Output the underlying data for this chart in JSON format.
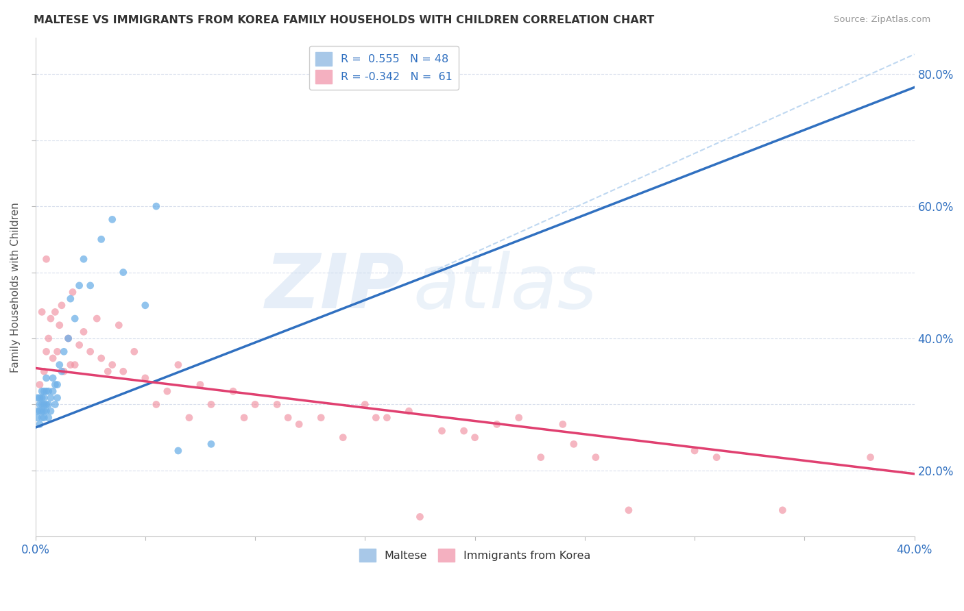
{
  "title": "MALTESE VS IMMIGRANTS FROM KOREA FAMILY HOUSEHOLDS WITH CHILDREN CORRELATION CHART",
  "source": "Source: ZipAtlas.com",
  "ylabel": "Family Households with Children",
  "maltese_color": "#6eb0e8",
  "korea_color": "#f090a0",
  "maltese_line_color": "#3070c0",
  "korea_line_color": "#e04070",
  "dashed_line_color": "#b8d4f0",
  "background_color": "#ffffff",
  "watermark_text": "ZIP",
  "watermark_text2": "atlas",
  "xlim": [
    0.0,
    0.4
  ],
  "ylim": [
    0.1,
    0.855
  ],
  "ytick_vals": [
    0.2,
    0.3,
    0.4,
    0.5,
    0.6,
    0.7,
    0.8
  ],
  "ytick_labels_right": [
    "20.0%",
    "",
    "40.0%",
    "",
    "60.0%",
    "",
    "80.0%"
  ],
  "maltese_line_x0": 0.0,
  "maltese_line_y0": 0.265,
  "maltese_line_x1": 0.4,
  "maltese_line_y1": 0.78,
  "korea_line_x0": 0.0,
  "korea_line_y0": 0.355,
  "korea_line_x1": 0.4,
  "korea_line_y1": 0.195,
  "dashed_line_x0": 0.18,
  "dashed_line_y0": 0.5,
  "dashed_line_x1": 0.4,
  "dashed_line_y1": 0.83,
  "maltese_x": [
    0.001,
    0.001,
    0.001,
    0.002,
    0.002,
    0.002,
    0.002,
    0.003,
    0.003,
    0.003,
    0.003,
    0.003,
    0.004,
    0.004,
    0.004,
    0.004,
    0.004,
    0.005,
    0.005,
    0.005,
    0.005,
    0.006,
    0.006,
    0.006,
    0.007,
    0.007,
    0.008,
    0.008,
    0.009,
    0.009,
    0.01,
    0.01,
    0.011,
    0.012,
    0.013,
    0.015,
    0.016,
    0.018,
    0.02,
    0.022,
    0.025,
    0.03,
    0.035,
    0.04,
    0.05,
    0.055,
    0.065,
    0.08
  ],
  "maltese_y": [
    0.29,
    0.31,
    0.28,
    0.29,
    0.31,
    0.3,
    0.27,
    0.3,
    0.28,
    0.32,
    0.29,
    0.31,
    0.28,
    0.3,
    0.29,
    0.32,
    0.31,
    0.29,
    0.32,
    0.3,
    0.34,
    0.3,
    0.32,
    0.28,
    0.31,
    0.29,
    0.32,
    0.34,
    0.3,
    0.33,
    0.33,
    0.31,
    0.36,
    0.35,
    0.38,
    0.4,
    0.46,
    0.43,
    0.48,
    0.52,
    0.48,
    0.55,
    0.58,
    0.5,
    0.45,
    0.6,
    0.23,
    0.24
  ],
  "korea_x": [
    0.002,
    0.003,
    0.004,
    0.005,
    0.005,
    0.006,
    0.007,
    0.008,
    0.009,
    0.01,
    0.011,
    0.012,
    0.013,
    0.015,
    0.016,
    0.017,
    0.018,
    0.02,
    0.022,
    0.025,
    0.028,
    0.03,
    0.033,
    0.035,
    0.038,
    0.04,
    0.045,
    0.05,
    0.055,
    0.06,
    0.065,
    0.07,
    0.075,
    0.08,
    0.09,
    0.095,
    0.1,
    0.11,
    0.115,
    0.12,
    0.13,
    0.14,
    0.15,
    0.155,
    0.16,
    0.17,
    0.175,
    0.185,
    0.195,
    0.2,
    0.21,
    0.22,
    0.23,
    0.24,
    0.245,
    0.255,
    0.27,
    0.3,
    0.31,
    0.34,
    0.38
  ],
  "korea_y": [
    0.33,
    0.44,
    0.35,
    0.38,
    0.52,
    0.4,
    0.43,
    0.37,
    0.44,
    0.38,
    0.42,
    0.45,
    0.35,
    0.4,
    0.36,
    0.47,
    0.36,
    0.39,
    0.41,
    0.38,
    0.43,
    0.37,
    0.35,
    0.36,
    0.42,
    0.35,
    0.38,
    0.34,
    0.3,
    0.32,
    0.36,
    0.28,
    0.33,
    0.3,
    0.32,
    0.28,
    0.3,
    0.3,
    0.28,
    0.27,
    0.28,
    0.25,
    0.3,
    0.28,
    0.28,
    0.29,
    0.13,
    0.26,
    0.26,
    0.25,
    0.27,
    0.28,
    0.22,
    0.27,
    0.24,
    0.22,
    0.14,
    0.23,
    0.22,
    0.14,
    0.22
  ]
}
